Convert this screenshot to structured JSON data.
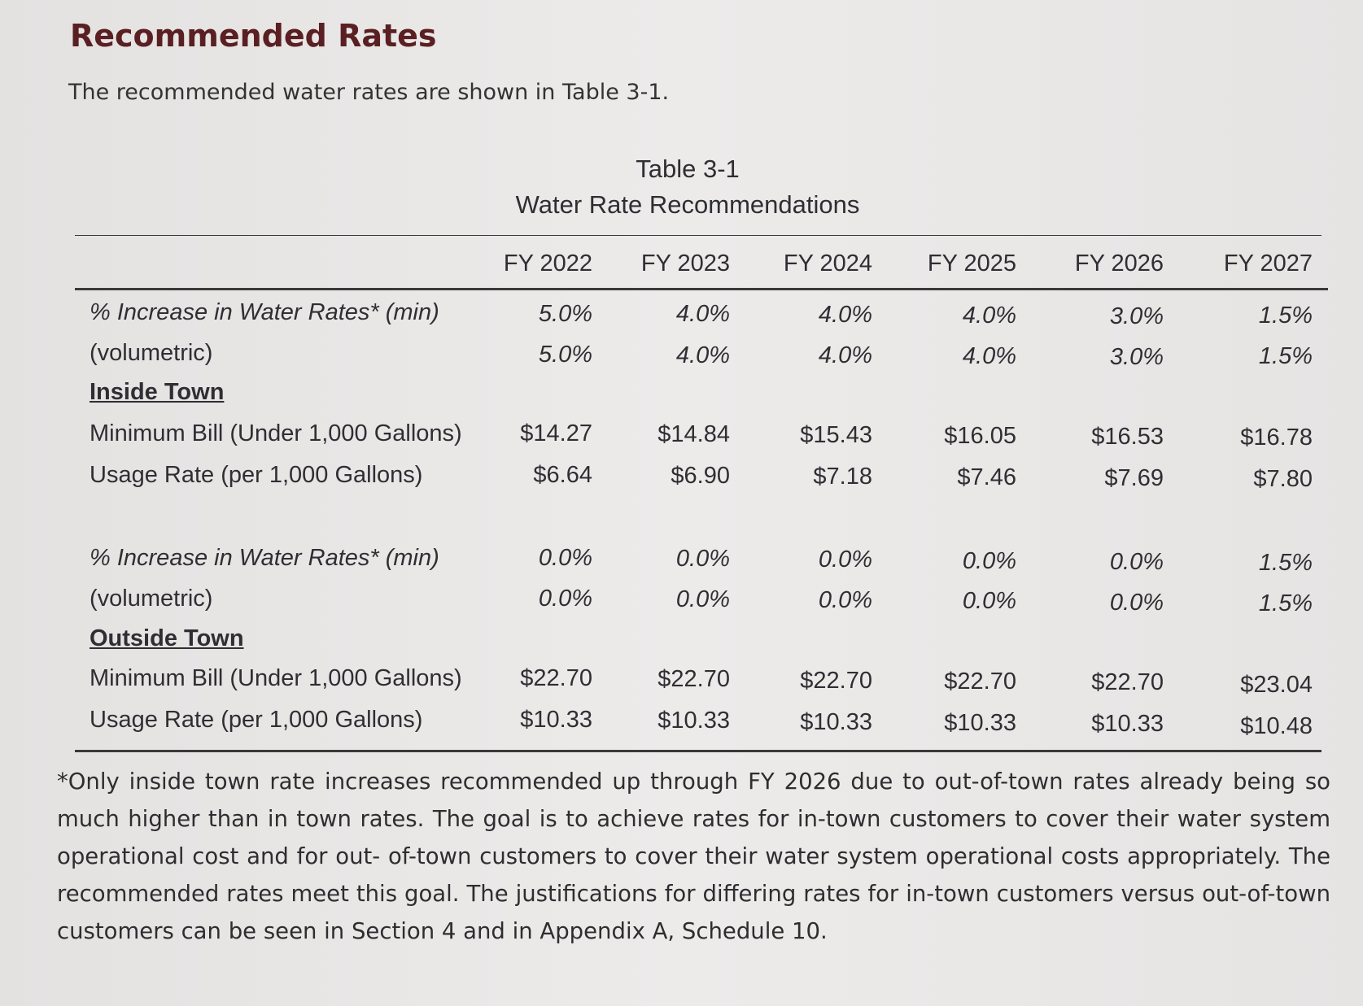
{
  "heading": "Recommended Rates",
  "intro": "The recommended water rates are shown in Table 3-1.",
  "table": {
    "number": "Table 3-1",
    "title": "Water Rate Recommendations",
    "columns": [
      "FY 2022",
      "FY 2023",
      "FY 2024",
      "FY 2025",
      "FY 2026",
      "FY 2027"
    ],
    "inside": {
      "section": "Inside Town",
      "rows": [
        {
          "label": "% Increase in Water Rates* (min)",
          "values": [
            "5.0%",
            "4.0%",
            "4.0%",
            "4.0%",
            "3.0%",
            "1.5%"
          ]
        },
        {
          "label": "(volumetric)",
          "values": [
            "5.0%",
            "4.0%",
            "4.0%",
            "4.0%",
            "3.0%",
            "1.5%"
          ]
        },
        {
          "label": "Minimum Bill (Under 1,000 Gallons)",
          "values": [
            "$14.27",
            "$14.84",
            "$15.43",
            "$16.05",
            "$16.53",
            "$16.78"
          ]
        },
        {
          "label": "Usage Rate (per 1,000 Gallons)",
          "values": [
            "$6.64",
            "$6.90",
            "$7.18",
            "$7.46",
            "$7.69",
            "$7.80"
          ]
        }
      ]
    },
    "outside": {
      "section": "Outside Town",
      "rows": [
        {
          "label": "% Increase in Water Rates* (min)",
          "values": [
            "0.0%",
            "0.0%",
            "0.0%",
            "0.0%",
            "0.0%",
            "1.5%"
          ]
        },
        {
          "label": "(volumetric)",
          "values": [
            "0.0%",
            "0.0%",
            "0.0%",
            "0.0%",
            "0.0%",
            "1.5%"
          ]
        },
        {
          "label": "Minimum Bill (Under 1,000 Gallons)",
          "values": [
            "$22.70",
            "$22.70",
            "$22.70",
            "$22.70",
            "$22.70",
            "$23.04"
          ]
        },
        {
          "label": "Usage Rate (per 1,000 Gallons)",
          "values": [
            "$10.33",
            "$10.33",
            "$10.33",
            "$10.33",
            "$10.33",
            "$10.48"
          ]
        }
      ]
    }
  },
  "footnote": "*Only inside town rate increases recommended up through FY 2026 due to out-of-town rates already being so much higher than in town rates.  The goal is to achieve rates for in-town customers to cover their water system operational cost and for out- of-town customers to cover their water system operational costs appropriately. The recommended rates meet this goal. The justifications for differing rates for in-town customers versus out-of-town customers can be seen in Section 4 and in Appendix A, Schedule 10.",
  "colors": {
    "heading": "#5a1f22",
    "text": "#2f2e33",
    "paper": "#e9e7e6"
  }
}
